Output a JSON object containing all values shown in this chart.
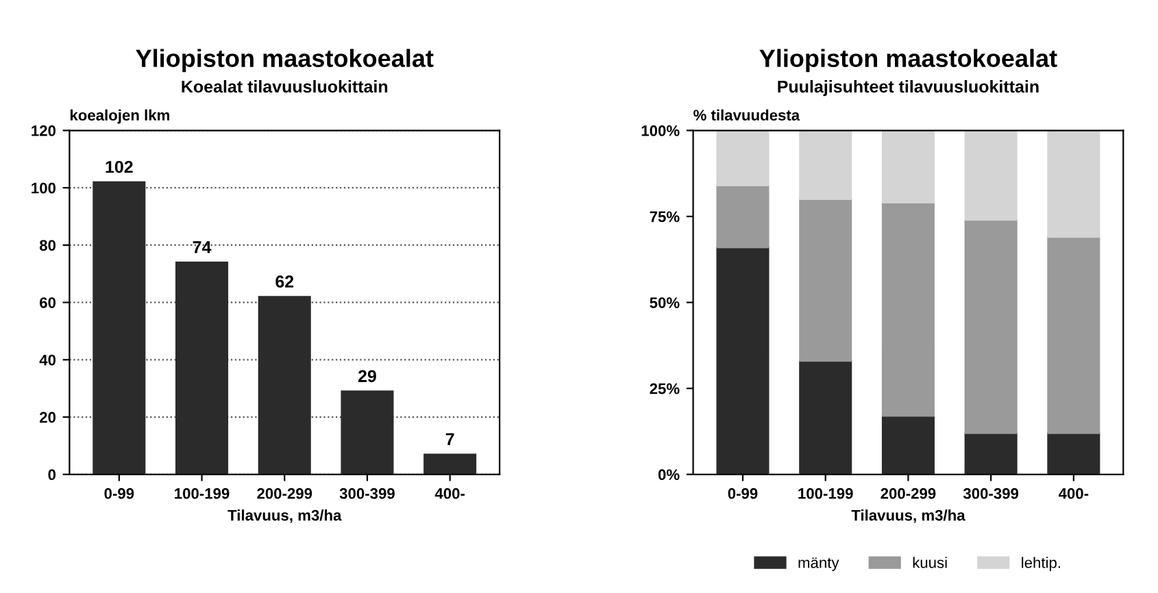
{
  "chart_data": [
    {
      "type": "bar",
      "title": "Yliopiston maastokoealat",
      "subtitle": "Koealat tilavuusluokittain",
      "xlabel": "Tilavuus, m3/ha",
      "ylabel": "koealojen lkm",
      "categories": [
        "0-99",
        "100-199",
        "200-299",
        "300-399",
        "400-"
      ],
      "series": [
        {
          "color": "#2b2b2b",
          "values": [
            102,
            74,
            62,
            29,
            7
          ]
        }
      ],
      "ylim": [
        0,
        120
      ],
      "yticks": [
        0,
        20,
        40,
        60,
        80,
        100,
        120
      ],
      "grid": "y",
      "data_labels": true,
      "legend": false
    },
    {
      "type": "bar",
      "title": "Yliopiston maastokoealat",
      "subtitle": "Puulajisuhteet tilavuusluokittain",
      "xlabel": "Tilavuus, m3/ha",
      "ylabel": "% tilavuudesta",
      "categories": [
        "0-99",
        "100-199",
        "200-299",
        "300-399",
        "400-"
      ],
      "stacked": true,
      "series": [
        {
          "name": "mänty",
          "color": "#2b2b2b",
          "values": [
            66,
            33,
            17,
            12,
            12
          ]
        },
        {
          "name": "kuusi",
          "color": "#9a9a9a",
          "values": [
            18,
            47,
            62,
            62,
            57
          ]
        },
        {
          "name": "lehtip.",
          "color": "#d4d4d4",
          "values": [
            16,
            20,
            21,
            26,
            31
          ]
        }
      ],
      "ylim": [
        0,
        100
      ],
      "yticks": [
        {
          "value": 0,
          "label": "0%"
        },
        {
          "value": 25,
          "label": "25%"
        },
        {
          "value": 50,
          "label": "50%"
        },
        {
          "value": 75,
          "label": "75%"
        },
        {
          "value": 100,
          "label": "100%"
        }
      ],
      "grid": false,
      "legend": "bottom"
    }
  ]
}
